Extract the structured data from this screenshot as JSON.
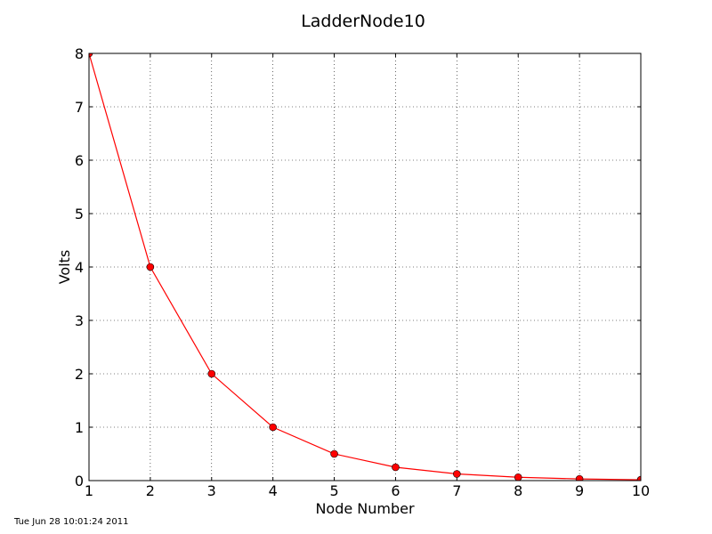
{
  "chart_data": {
    "type": "line",
    "title": "LadderNode10",
    "xlabel": "Node Number",
    "ylabel": "Volts",
    "x": [
      1,
      2,
      3,
      4,
      5,
      6,
      7,
      8,
      9,
      10
    ],
    "series": [
      {
        "values": [
          8,
          4,
          2,
          1,
          0.5,
          0.25,
          0.125,
          0.0625,
          0.03125,
          0.015625
        ],
        "color": "#ff0000",
        "marker": "circle"
      }
    ],
    "xlim": [
      1,
      10
    ],
    "ylim": [
      0,
      8
    ],
    "xticks": [
      "1",
      "2",
      "3",
      "4",
      "5",
      "6",
      "7",
      "8",
      "9",
      "10"
    ],
    "yticks": [
      "0",
      "1",
      "2",
      "3",
      "4",
      "5",
      "6",
      "7",
      "8"
    ],
    "grid": true
  },
  "footer": {
    "timestamp": "Tue Jun 28 10:01:24 2011"
  }
}
